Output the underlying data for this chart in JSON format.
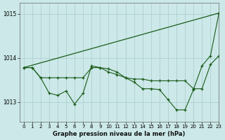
{
  "title": "Graphe pression niveau de la mer (hPa)",
  "background_color": "#cce8e8",
  "grid_color": "#aacccc",
  "line_color": "#1a5c1a",
  "xlim": [
    -0.5,
    23
  ],
  "ylim": [
    1012.55,
    1015.25
  ],
  "yticks": [
    1013,
    1014,
    1015
  ],
  "xticks": [
    0,
    1,
    2,
    3,
    4,
    5,
    6,
    7,
    8,
    9,
    10,
    11,
    12,
    13,
    14,
    15,
    16,
    17,
    18,
    19,
    20,
    21,
    22,
    23
  ],
  "line1_x": [
    0,
    23
  ],
  "line1_y": [
    1013.78,
    1015.02
  ],
  "line2_x": [
    0,
    1,
    2,
    3,
    4,
    5,
    6,
    7,
    8,
    9,
    10,
    11,
    12,
    13,
    14,
    15,
    16,
    17,
    18,
    19,
    20,
    21,
    22,
    23
  ],
  "line2_y": [
    1013.78,
    1013.78,
    1013.55,
    1013.55,
    1013.55,
    1013.55,
    1013.55,
    1013.55,
    1013.78,
    1013.78,
    1013.68,
    1013.62,
    1013.55,
    1013.52,
    1013.52,
    1013.48,
    1013.48,
    1013.48,
    1013.48,
    1013.48,
    1013.3,
    1013.3,
    1013.85,
    1014.05
  ],
  "line3_x": [
    0,
    1,
    2,
    3,
    4,
    5,
    6,
    7,
    8,
    9,
    10,
    11,
    12,
    13,
    14,
    15,
    16,
    17,
    18,
    19,
    20,
    21,
    22,
    23
  ],
  "line3_y": [
    1013.78,
    1013.78,
    1013.55,
    1013.2,
    1013.15,
    1013.25,
    1012.95,
    1013.2,
    1013.82,
    1013.78,
    1013.75,
    1013.68,
    1013.55,
    1013.45,
    1013.3,
    1013.3,
    1013.28,
    1013.05,
    1012.82,
    1012.82,
    1013.28,
    1013.82,
    1014.05,
    1015.02
  ]
}
